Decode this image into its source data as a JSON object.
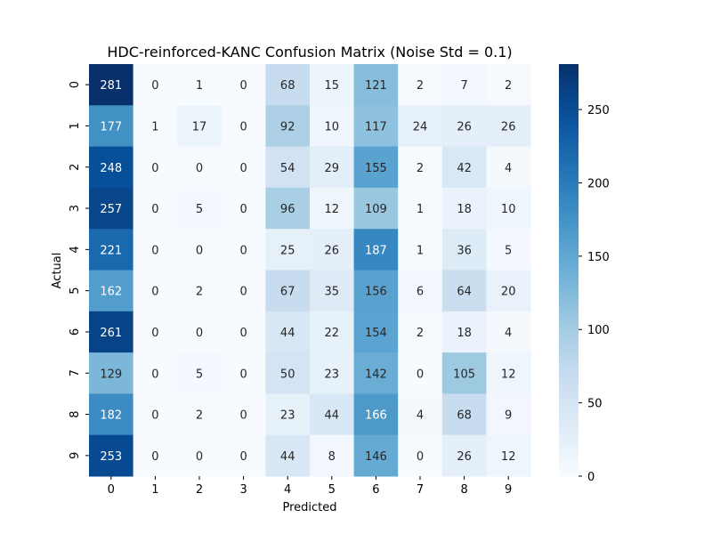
{
  "chart_data": {
    "type": "heatmap",
    "title": "HDC-reinforced-KANC Confusion Matrix (Noise Std = 0.1)",
    "xlabel": "Predicted",
    "ylabel": "Actual",
    "x_categories": [
      "0",
      "1",
      "2",
      "3",
      "4",
      "5",
      "6",
      "7",
      "8",
      "9"
    ],
    "y_categories": [
      "0",
      "1",
      "2",
      "3",
      "4",
      "5",
      "6",
      "7",
      "8",
      "9"
    ],
    "values": [
      [
        281,
        0,
        1,
        0,
        68,
        15,
        121,
        2,
        7,
        2
      ],
      [
        177,
        1,
        17,
        0,
        92,
        10,
        117,
        24,
        26,
        26
      ],
      [
        248,
        0,
        0,
        0,
        54,
        29,
        155,
        2,
        42,
        4
      ],
      [
        257,
        0,
        5,
        0,
        96,
        12,
        109,
        1,
        18,
        10
      ],
      [
        221,
        0,
        0,
        0,
        25,
        26,
        187,
        1,
        36,
        5
      ],
      [
        162,
        0,
        2,
        0,
        67,
        35,
        156,
        6,
        64,
        20
      ],
      [
        261,
        0,
        0,
        0,
        44,
        22,
        154,
        2,
        18,
        4
      ],
      [
        129,
        0,
        5,
        0,
        50,
        23,
        142,
        0,
        105,
        12
      ],
      [
        182,
        0,
        2,
        0,
        23,
        44,
        166,
        4,
        68,
        9
      ],
      [
        253,
        0,
        0,
        0,
        44,
        8,
        146,
        0,
        26,
        12
      ]
    ],
    "colormap": "Blues",
    "vmin": 0,
    "vmax": 281,
    "colorbar_ticks": [
      0,
      50,
      100,
      150,
      200,
      250
    ]
  }
}
